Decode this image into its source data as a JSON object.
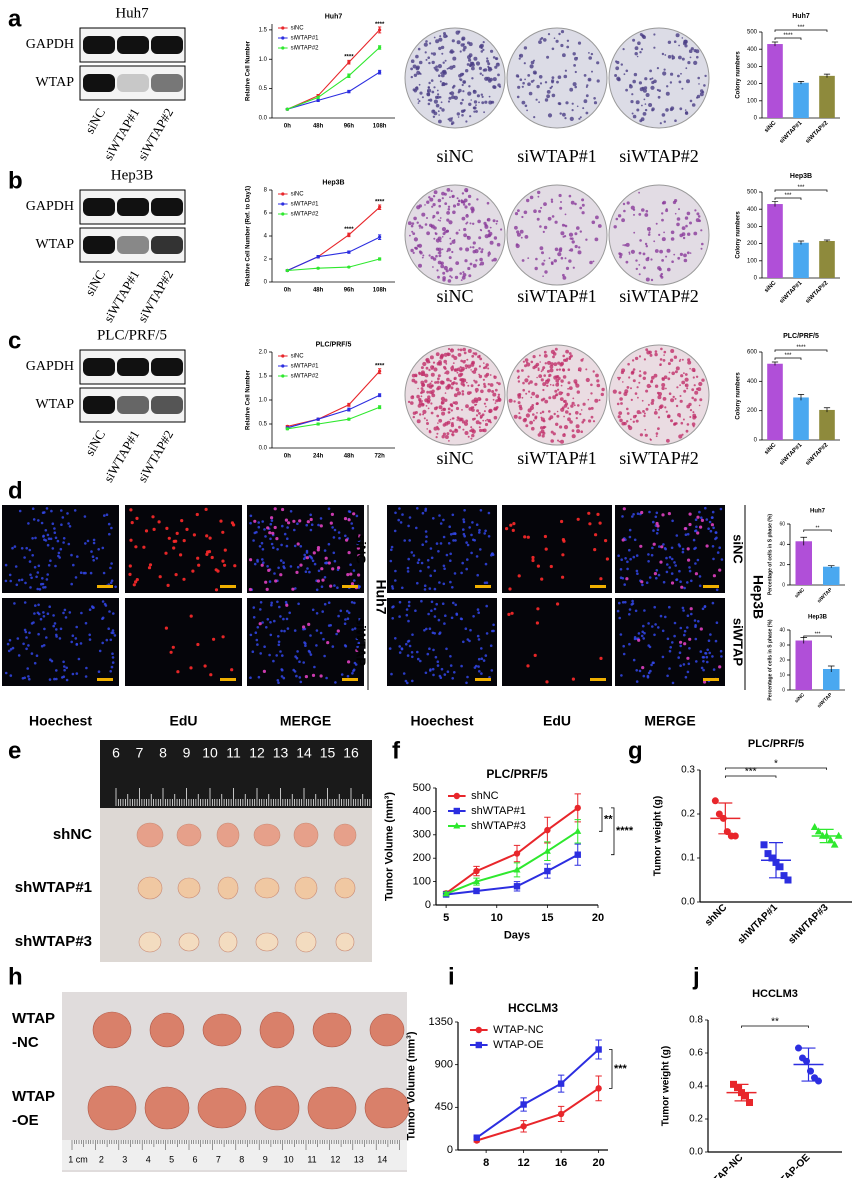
{
  "panels": {
    "letters": [
      "a",
      "b",
      "c",
      "d",
      "e",
      "f",
      "g",
      "h",
      "i",
      "j"
    ],
    "blots": [
      {
        "title": "Huh7",
        "rows": [
          "GAPDH",
          "WTAP"
        ],
        "lanes": [
          "siNC",
          "siWTAP#1",
          "siWTAP#2"
        ]
      },
      {
        "title": "Hep3B",
        "rows": [
          "GAPDH",
          "WTAP"
        ],
        "lanes": [
          "siNC",
          "siWTAP#1",
          "siWTAP#2"
        ]
      },
      {
        "title": "PLC/PRF/5",
        "rows": [
          "GAPDH",
          "WTAP"
        ],
        "lanes": [
          "siNC",
          "siWTAP#1",
          "siWTAP#2"
        ]
      }
    ],
    "plates": [
      [
        "siNC",
        "siWTAP#1",
        "siWTAP#2"
      ],
      [
        "siNC",
        "siWTAP#1",
        "siWTAP#2"
      ],
      [
        "siNC",
        "siWTAP#1",
        "siWTAP#2"
      ]
    ],
    "edu": {
      "stains": [
        "Hoechest",
        "EdU",
        "MERGE"
      ],
      "conditions": [
        "siNC",
        "siWTAP"
      ],
      "cells": [
        "Huh7",
        "Hep3B"
      ]
    },
    "xenograft_e": {
      "ruler": [
        "6",
        "7",
        "8",
        "9",
        "10",
        "11",
        "12",
        "13",
        "14",
        "15",
        "16"
      ],
      "groups": [
        "shNC",
        "shWTAP#1",
        "shWTAP#3"
      ]
    },
    "xenograft_h": {
      "ruler": [
        "1 cm",
        "2",
        "3",
        "4",
        "5",
        "6",
        "7",
        "8",
        "9",
        "10",
        "11",
        "12",
        "13",
        "14"
      ],
      "groups": [
        [
          "WTAP",
          "-NC"
        ],
        [
          "WTAP",
          "-OE"
        ]
      ]
    }
  },
  "chart_data": [
    {
      "type": "line",
      "title": "Huh7",
      "ylabel": "Relative Cell Number",
      "categories": [
        "0h",
        "48h",
        "96h",
        "108h"
      ],
      "ylim": [
        0,
        1.6
      ],
      "yticks": [
        {
          "value": 0,
          "label": "0.0"
        },
        0.5,
        {
          "value": 1,
          "label": "1.0"
        },
        1.5
      ],
      "series": [
        {
          "name": "siNC",
          "color": "#e8262b",
          "values": [
            0.15,
            0.38,
            0.95,
            1.5
          ],
          "errors": [
            0.01,
            0.02,
            0.03,
            0.05
          ]
        },
        {
          "name": "siWTAP#1",
          "color": "#2c2ee0",
          "values": [
            0.15,
            0.3,
            0.45,
            0.78
          ],
          "errors": [
            0.01,
            0.02,
            0.02,
            0.03
          ]
        },
        {
          "name": "siWTAP#2",
          "color": "#2ee82e",
          "values": [
            0.15,
            0.35,
            0.72,
            1.2
          ],
          "errors": [
            0.01,
            0.02,
            0.03,
            0.03
          ]
        }
      ],
      "annotations": [
        "****",
        "****"
      ]
    },
    {
      "type": "bar",
      "title": "Huh7",
      "ylabel": "Colony numbers",
      "categories": [
        "siNC",
        "siWTAP#1",
        "siWTAP#2"
      ],
      "values": [
        430,
        205,
        245
      ],
      "errors": [
        12,
        8,
        10
      ],
      "colors": [
        "#b04fd8",
        "#4aa8f0",
        "#8e8a3c"
      ],
      "ylim": [
        0,
        500
      ],
      "yticks": [
        0,
        100,
        200,
        300,
        400,
        500
      ],
      "annotations": [
        "****",
        "***"
      ]
    },
    {
      "type": "line",
      "title": "Hep3B",
      "ylabel": "Relative Cell Number (Ref. to Day1)",
      "categories": [
        "0h",
        "48h",
        "96h",
        "108h"
      ],
      "ylim": [
        0,
        8
      ],
      "yticks": [
        0,
        2,
        4,
        6,
        8
      ],
      "series": [
        {
          "name": "siNC",
          "color": "#e8262b",
          "values": [
            1,
            2.2,
            4.1,
            6.5
          ],
          "errors": [
            0.05,
            0.1,
            0.15,
            0.2
          ]
        },
        {
          "name": "siWTAP#1",
          "color": "#2c2ee0",
          "values": [
            1,
            2.2,
            2.6,
            3.9
          ],
          "errors": [
            0.05,
            0.1,
            0.1,
            0.2
          ]
        },
        {
          "name": "siWTAP#2",
          "color": "#2ee82e",
          "values": [
            1,
            1.2,
            1.3,
            2.0
          ],
          "errors": [
            0.05,
            0.05,
            0.05,
            0.1
          ]
        }
      ],
      "annotations": [
        "****",
        "****"
      ]
    },
    {
      "type": "bar",
      "title": "Hep3B",
      "ylabel": "Colony numbers",
      "categories": [
        "siNC",
        "siWTAP#1",
        "siWTAP#2"
      ],
      "values": [
        430,
        205,
        215
      ],
      "errors": [
        15,
        10,
        6
      ],
      "colors": [
        "#b04fd8",
        "#4aa8f0",
        "#8e8a3c"
      ],
      "ylim": [
        0,
        500
      ],
      "yticks": [
        0,
        100,
        200,
        300,
        400,
        500
      ],
      "annotations": [
        "***",
        "***"
      ]
    },
    {
      "type": "line",
      "title": "PLC/PRF/5",
      "ylabel": "Relative Cell Number",
      "categories": [
        "0h",
        "24h",
        "48h",
        "72h"
      ],
      "ylim": [
        0,
        2
      ],
      "yticks": [
        {
          "value": 0,
          "label": "0.0"
        },
        0.5,
        {
          "value": 1,
          "label": "1.0"
        },
        1.5,
        {
          "value": 2,
          "label": "2.0"
        }
      ],
      "series": [
        {
          "name": "siNC",
          "color": "#e8262b",
          "values": [
            0.45,
            0.6,
            0.9,
            1.6
          ],
          "errors": [
            0.02,
            0.02,
            0.03,
            0.05
          ]
        },
        {
          "name": "siWTAP#1",
          "color": "#2c2ee0",
          "values": [
            0.42,
            0.6,
            0.8,
            1.1
          ],
          "errors": [
            0.02,
            0.02,
            0.03,
            0.03
          ]
        },
        {
          "name": "siWTAP#2",
          "color": "#2ee82e",
          "values": [
            0.4,
            0.5,
            0.6,
            0.85
          ],
          "errors": [
            0.02,
            0.02,
            0.02,
            0.03
          ]
        }
      ],
      "annotations": [
        "****"
      ]
    },
    {
      "type": "bar",
      "title": "PLC/PRF/5",
      "ylabel": "Colony numbers",
      "categories": [
        "siNC",
        "siWTAP#1",
        "siWTAP#2"
      ],
      "values": [
        520,
        290,
        205
      ],
      "errors": [
        12,
        20,
        15
      ],
      "colors": [
        "#b04fd8",
        "#4aa8f0",
        "#8e8a3c"
      ],
      "ylim": [
        0,
        600
      ],
      "yticks": [
        0,
        200,
        400,
        600
      ],
      "annotations": [
        "***",
        "****"
      ]
    },
    {
      "type": "bar",
      "title": "Huh7",
      "ylabel": "Percentage of cells in S phase (%)",
      "categories": [
        "siNC",
        "siWTAP"
      ],
      "values": [
        43,
        18
      ],
      "errors": [
        4,
        1
      ],
      "colors": [
        "#b04fd8",
        "#4aa8f0"
      ],
      "ylim": [
        0,
        60
      ],
      "yticks": [
        0,
        20,
        40,
        60
      ],
      "annotations": [
        "**"
      ]
    },
    {
      "type": "bar",
      "title": "Hep3B",
      "ylabel": "Percentage of cells in S phase (%)",
      "categories": [
        "siNC",
        "siWTAP"
      ],
      "values": [
        33,
        14
      ],
      "errors": [
        2,
        2
      ],
      "colors": [
        "#b04fd8",
        "#4aa8f0"
      ],
      "ylim": [
        0,
        40
      ],
      "yticks": [
        0,
        10,
        20,
        30,
        40
      ],
      "annotations": [
        "***"
      ]
    },
    {
      "type": "line",
      "title": "PLC/PRF/5",
      "ylabel": "Tumor Volume (mm³)",
      "xlabel": "Days",
      "x": [
        5,
        8,
        12,
        15,
        18
      ],
      "xlim": [
        4,
        20
      ],
      "xticks": [
        5,
        10,
        15,
        20
      ],
      "ylim": [
        0,
        500
      ],
      "yticks": [
        0,
        100,
        200,
        300,
        400,
        500
      ],
      "markers": [
        "circle",
        "square",
        "triangle"
      ],
      "series": [
        {
          "name": "shNC",
          "color": "#e8262b",
          "values": [
            50,
            145,
            220,
            320,
            415
          ],
          "errors": [
            8,
            20,
            35,
            55,
            60
          ]
        },
        {
          "name": "shWTAP#1",
          "color": "#2c2ee0",
          "values": [
            45,
            60,
            80,
            145,
            215
          ],
          "errors": [
            6,
            10,
            20,
            30,
            45
          ]
        },
        {
          "name": "shWTAP#3",
          "color": "#2ee82e",
          "values": [
            48,
            100,
            150,
            230,
            315
          ],
          "errors": [
            6,
            15,
            30,
            40,
            50
          ]
        }
      ],
      "annotations": [
        "**",
        "****"
      ]
    },
    {
      "type": "strip",
      "title": "PLC/PRF/5",
      "ylabel": "Tumor weight (g)",
      "categories": [
        "shNC",
        "shWTAP#1",
        "shWTAP#3"
      ],
      "points": [
        [
          0.23,
          0.2,
          0.19,
          0.16,
          0.15,
          0.15
        ],
        [
          0.13,
          0.11,
          0.1,
          0.09,
          0.08,
          0.06,
          0.05
        ],
        [
          0.17,
          0.16,
          0.15,
          0.15,
          0.14,
          0.13,
          0.15
        ]
      ],
      "means": [
        0.19,
        0.095,
        0.15
      ],
      "sd": [
        0.035,
        0.04,
        0.015
      ],
      "colors": [
        "#e8262b",
        "#2c2ee0",
        "#2ee82e"
      ],
      "markers": [
        "circle",
        "square",
        "triangle"
      ],
      "ylim": [
        0,
        0.3
      ],
      "yticks": [
        {
          "value": 0,
          "label": "0.0"
        },
        0.1,
        0.2,
        0.3
      ],
      "annotations": [
        "***",
        "*"
      ]
    },
    {
      "type": "line",
      "title": "HCCLM3",
      "ylabel": "Tumor Volume (mm³)",
      "x": [
        7,
        12,
        16,
        20
      ],
      "xlim": [
        5,
        21
      ],
      "xticks": [
        8,
        12,
        16,
        20
      ],
      "ylim": [
        0,
        1350
      ],
      "yticks": [
        0,
        450,
        900,
        1350
      ],
      "markers": [
        "circle",
        "square"
      ],
      "series": [
        {
          "name": "WTAP-NC",
          "color": "#e8262b",
          "values": [
            100,
            250,
            380,
            650
          ],
          "errors": [
            15,
            60,
            80,
            130
          ]
        },
        {
          "name": "WTAP-OE",
          "color": "#2c2ee0",
          "values": [
            130,
            480,
            700,
            1060
          ],
          "errors": [
            15,
            70,
            90,
            100
          ]
        }
      ],
      "annotations": [
        "***"
      ]
    },
    {
      "type": "strip",
      "title": "HCCLM3",
      "ylabel": "Tumor weight (g)",
      "categories": [
        "WTAP-NC",
        "WTAP-OE"
      ],
      "points": [
        [
          0.41,
          0.39,
          0.36,
          0.34,
          0.3
        ],
        [
          0.63,
          0.57,
          0.55,
          0.49,
          0.45,
          0.43
        ]
      ],
      "means": [
        0.36,
        0.53
      ],
      "sd": [
        0.05,
        0.1
      ],
      "colors": [
        "#e8262b",
        "#2c2ee0"
      ],
      "markers": [
        "square",
        "circle"
      ],
      "ylim": [
        0,
        0.8
      ],
      "yticks": [
        {
          "value": 0,
          "label": "0.0"
        },
        0.2,
        0.4,
        0.6,
        0.8
      ],
      "annotations": [
        "**"
      ]
    }
  ]
}
